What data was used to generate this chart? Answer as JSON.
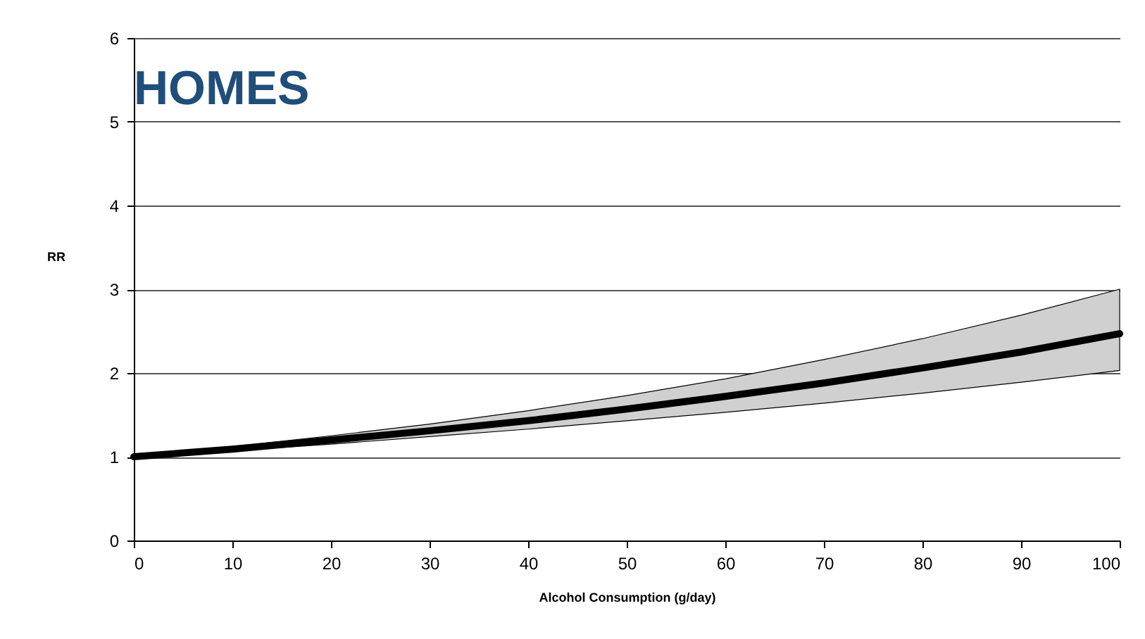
{
  "chart_data": {
    "type": "line",
    "title": "HOMES",
    "xlabel": "Alcohol Consumption (g/day)",
    "ylabel": "RR",
    "x": [
      0,
      10,
      20,
      30,
      40,
      50,
      60,
      70,
      80,
      90,
      100
    ],
    "series": [
      {
        "color": "#000000",
        "values": [
          1,
          1.09,
          1.2,
          1.31,
          1.43,
          1.57,
          1.72,
          1.88,
          2.06,
          2.25,
          2.47
        ],
        "lower": [
          1,
          1.07,
          1.15,
          1.24,
          1.33,
          1.43,
          1.53,
          1.64,
          1.76,
          1.89,
          2.03
        ],
        "upper": [
          1,
          1.12,
          1.25,
          1.39,
          1.55,
          1.73,
          1.93,
          2.16,
          2.41,
          2.69,
          3.0
        ]
      }
    ],
    "xlim": [
      0,
      100
    ],
    "xticks": [
      0,
      10,
      20,
      30,
      40,
      50,
      60,
      70,
      80,
      90,
      100
    ],
    "ylim": [
      0,
      6
    ],
    "yticks": [
      0,
      1,
      2,
      3,
      4,
      5,
      6
    ],
    "grid": "y",
    "marker": "none",
    "line_style": "solid"
  }
}
